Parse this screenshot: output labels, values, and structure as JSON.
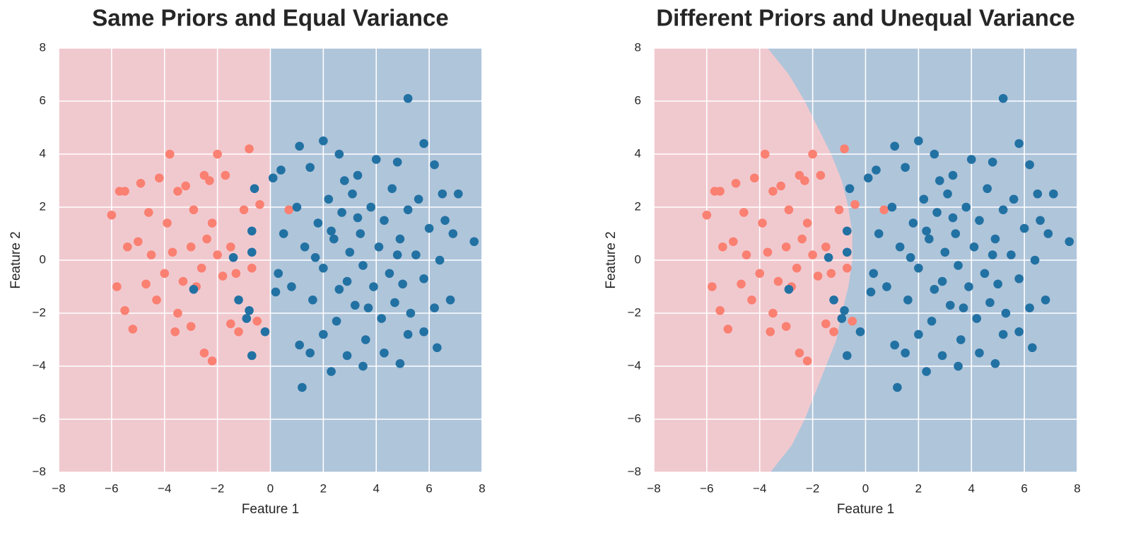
{
  "chart_data": [
    {
      "type": "scatter",
      "title": "Same Priors and Equal Variance",
      "x_label": "Feature 1",
      "y_label": "Feature 2",
      "xlim": [
        -8,
        8
      ],
      "ylim": [
        -8,
        8
      ],
      "xticks": [
        {
          "value": -8,
          "label": "−8"
        },
        {
          "value": -6,
          "label": "−6"
        },
        {
          "value": -4,
          "label": "−4"
        },
        {
          "value": -2,
          "label": "−2"
        },
        0,
        2,
        4,
        6,
        8
      ],
      "yticks": [
        {
          "value": -8,
          "label": "−8"
        },
        {
          "value": -6,
          "label": "−6"
        },
        {
          "value": -4,
          "label": "−4"
        },
        {
          "value": -2,
          "label": "−2"
        },
        0,
        2,
        4,
        6,
        8
      ],
      "grid": true,
      "region_colors": [
        "#f0c9cf",
        "#afc5da"
      ],
      "decision_boundary": {
        "x": [
          0,
          0
        ],
        "y": [
          8,
          -8
        ]
      },
      "series": [
        {
          "color": "#fa8072",
          "x": [
            -6,
            -5.7,
            -5.5,
            -5.8,
            -5.5,
            -5.2,
            -4.9,
            -4.6,
            -3.8,
            -4.2,
            -3.5,
            -3.2,
            -2.5,
            -2.3,
            -2,
            -1.7,
            -0.8,
            -5,
            -4.5,
            -4,
            -3.7,
            -3.3,
            -3,
            -2.8,
            -2.6,
            -2.4,
            -2.2,
            -2,
            -1.8,
            -1.5,
            -1.3,
            -1,
            -0.7,
            -0.5,
            -3.5,
            -3,
            -2.5,
            -2.2,
            -1.5,
            -4.3,
            -4.7,
            -3.9,
            -2.9,
            -1.2,
            0.7,
            -0.4,
            -5.4,
            -3.6
          ],
          "values": [
            1.7,
            2.6,
            2.6,
            -1,
            -1.9,
            -2.6,
            2.9,
            1.8,
            4,
            3.1,
            2.6,
            2.8,
            3.2,
            3,
            4,
            3.2,
            4.2,
            0.7,
            0.2,
            -0.5,
            0.3,
            -0.8,
            0.5,
            -1,
            -0.3,
            0.8,
            1.4,
            0.2,
            -0.6,
            0.5,
            -0.5,
            1.9,
            -0.3,
            -2.3,
            -2,
            -2.5,
            -3.5,
            -3.8,
            -2.4,
            -1.5,
            -0.9,
            1.4,
            1.9,
            -2.7,
            1.9,
            2.1,
            0.5,
            -2.7
          ]
        },
        {
          "color": "#2271a3",
          "x": [
            5.2,
            5.8,
            2,
            1.1,
            2.6,
            0.1,
            0.4,
            1.5,
            3.3,
            4,
            4.8,
            6.2,
            6.5,
            7.1,
            7.7,
            6.9,
            6.8,
            6.3,
            5.2,
            5.8,
            4.9,
            3.5,
            2.3,
            1.2,
            1.1,
            -0.7,
            -0.2,
            -0.9,
            -1.2,
            -0.8,
            -0.7,
            -0.6,
            -0.7,
            -2.9,
            -1.4,
            0.3,
            0.5,
            0.8,
            1,
            1.3,
            1.6,
            1.8,
            2,
            2.2,
            2.4,
            2.5,
            2.7,
            2.9,
            3,
            3.1,
            3.2,
            3.4,
            3.5,
            3.6,
            3.8,
            3.9,
            4.1,
            4.2,
            4.3,
            4.5,
            4.6,
            4.7,
            4.9,
            5,
            5.2,
            5.3,
            5.5,
            5.6,
            5.8,
            6,
            6.2,
            6.4,
            6.6,
            2.8,
            1.5,
            2,
            2.9,
            4.3,
            0.2,
            1.7,
            2.6,
            3.3,
            4.8,
            3.7,
            2.3
          ],
          "values": [
            6.1,
            4.4,
            4.5,
            4.3,
            4,
            3.1,
            3.4,
            3.5,
            3.2,
            3.8,
            3.7,
            3.6,
            2.5,
            2.5,
            0.7,
            1,
            -1.5,
            -3.3,
            -2.8,
            -2.7,
            -3.9,
            -4,
            -4.2,
            -4.8,
            -3.2,
            -3.6,
            -2.7,
            -2.2,
            -1.5,
            -1.9,
            0.3,
            2.7,
            1.1,
            -1.1,
            0.1,
            -0.5,
            1,
            -1,
            2,
            0.5,
            -1.5,
            1.4,
            -0.3,
            2.3,
            0.8,
            -2.3,
            1.8,
            -0.8,
            0.3,
            2.5,
            -1.7,
            1,
            -0.2,
            -3,
            2,
            -1,
            0.5,
            -2.2,
            1.5,
            -0.5,
            2.7,
            -1.6,
            0.8,
            -0.9,
            1.9,
            -2,
            0.2,
            2.3,
            -0.7,
            1.2,
            -1.8,
            0,
            1.5,
            3,
            -3.5,
            -2.8,
            -3.6,
            -3.5,
            -1.2,
            0.1,
            -1.1,
            1.6,
            0.2,
            -1.8,
            1.1
          ]
        }
      ]
    },
    {
      "type": "scatter",
      "title": "Different Priors and Unequal Variance",
      "x_label": "Feature 1",
      "y_label": "Feature 2",
      "xlim": [
        -8,
        8
      ],
      "ylim": [
        -8,
        8
      ],
      "xticks": [
        {
          "value": -8,
          "label": "−8"
        },
        {
          "value": -6,
          "label": "−6"
        },
        {
          "value": -4,
          "label": "−4"
        },
        {
          "value": -2,
          "label": "−2"
        },
        0,
        2,
        4,
        6,
        8
      ],
      "yticks": [
        {
          "value": -8,
          "label": "−8"
        },
        {
          "value": -6,
          "label": "−6"
        },
        {
          "value": -4,
          "label": "−4"
        },
        {
          "value": -2,
          "label": "−2"
        },
        0,
        2,
        4,
        6,
        8
      ],
      "grid": true,
      "region_colors": [
        "#f0c9cf",
        "#afc5da"
      ],
      "decision_boundary": {
        "x": [
          -3.7,
          -2.9,
          -2.3,
          -1.8,
          -1.3,
          -0.9,
          -0.65,
          -0.5,
          -0.5,
          -0.65,
          -0.9,
          -1.1,
          -1.5,
          -1.9,
          -2.3,
          -2.8,
          -3.6
        ],
        "y": [
          8,
          7,
          6,
          5,
          4,
          3,
          2,
          1,
          0,
          -1,
          -2,
          -3,
          -4,
          -5,
          -6,
          -7,
          -8
        ]
      },
      "series": [
        {
          "color": "#fa8072",
          "x": [
            -6,
            -5.7,
            -5.5,
            -5.8,
            -5.5,
            -5.2,
            -4.9,
            -4.6,
            -3.8,
            -4.2,
            -3.5,
            -3.2,
            -2.5,
            -2.3,
            -2,
            -1.7,
            -0.8,
            -5,
            -4.5,
            -4,
            -3.7,
            -3.3,
            -3,
            -2.8,
            -2.6,
            -2.4,
            -2.2,
            -2,
            -1.8,
            -1.5,
            -1.3,
            -1,
            -0.7,
            -0.5,
            -3.5,
            -3,
            -2.5,
            -2.2,
            -1.5,
            -4.3,
            -4.7,
            -3.9,
            -2.9,
            -1.2,
            0.7,
            -0.4,
            -5.4,
            -3.6
          ],
          "values": [
            1.7,
            2.6,
            2.6,
            -1,
            -1.9,
            -2.6,
            2.9,
            1.8,
            4,
            3.1,
            2.6,
            2.8,
            3.2,
            3,
            4,
            3.2,
            4.2,
            0.7,
            0.2,
            -0.5,
            0.3,
            -0.8,
            0.5,
            -1,
            -0.3,
            0.8,
            1.4,
            0.2,
            -0.6,
            0.5,
            -0.5,
            1.9,
            -0.3,
            -2.3,
            -2,
            -2.5,
            -3.5,
            -3.8,
            -2.4,
            -1.5,
            -0.9,
            1.4,
            1.9,
            -2.7,
            1.9,
            2.1,
            0.5,
            -2.7
          ]
        },
        {
          "color": "#2271a3",
          "x": [
            5.2,
            5.8,
            2,
            1.1,
            2.6,
            0.1,
            0.4,
            1.5,
            3.3,
            4,
            4.8,
            6.2,
            6.5,
            7.1,
            7.7,
            6.9,
            6.8,
            6.3,
            5.2,
            5.8,
            4.9,
            3.5,
            2.3,
            1.2,
            1.1,
            -0.7,
            -0.2,
            -0.9,
            -1.2,
            -0.8,
            -0.7,
            -0.6,
            -0.7,
            -2.9,
            -1.4,
            0.3,
            0.5,
            0.8,
            1,
            1.3,
            1.6,
            1.8,
            2,
            2.2,
            2.4,
            2.5,
            2.7,
            2.9,
            3,
            3.1,
            3.2,
            3.4,
            3.5,
            3.6,
            3.8,
            3.9,
            4.1,
            4.2,
            4.3,
            4.5,
            4.6,
            4.7,
            4.9,
            5,
            5.2,
            5.3,
            5.5,
            5.6,
            5.8,
            6,
            6.2,
            6.4,
            6.6,
            2.8,
            1.5,
            2,
            2.9,
            4.3,
            0.2,
            1.7,
            2.6,
            3.3,
            4.8,
            3.7,
            2.3
          ],
          "values": [
            6.1,
            4.4,
            4.5,
            4.3,
            4,
            3.1,
            3.4,
            3.5,
            3.2,
            3.8,
            3.7,
            3.6,
            2.5,
            2.5,
            0.7,
            1,
            -1.5,
            -3.3,
            -2.8,
            -2.7,
            -3.9,
            -4,
            -4.2,
            -4.8,
            -3.2,
            -3.6,
            -2.7,
            -2.2,
            -1.5,
            -1.9,
            0.3,
            2.7,
            1.1,
            -1.1,
            0.1,
            -0.5,
            1,
            -1,
            2,
            0.5,
            -1.5,
            1.4,
            -0.3,
            2.3,
            0.8,
            -2.3,
            1.8,
            -0.8,
            0.3,
            2.5,
            -1.7,
            1,
            -0.2,
            -3,
            2,
            -1,
            0.5,
            -2.2,
            1.5,
            -0.5,
            2.7,
            -1.6,
            0.8,
            -0.9,
            1.9,
            -2,
            0.2,
            2.3,
            -0.7,
            1.2,
            -1.8,
            0,
            1.5,
            3,
            -3.5,
            -2.8,
            -3.6,
            -3.5,
            -1.2,
            0.1,
            -1.1,
            1.6,
            0.2,
            -1.8,
            1.1
          ]
        }
      ]
    }
  ]
}
